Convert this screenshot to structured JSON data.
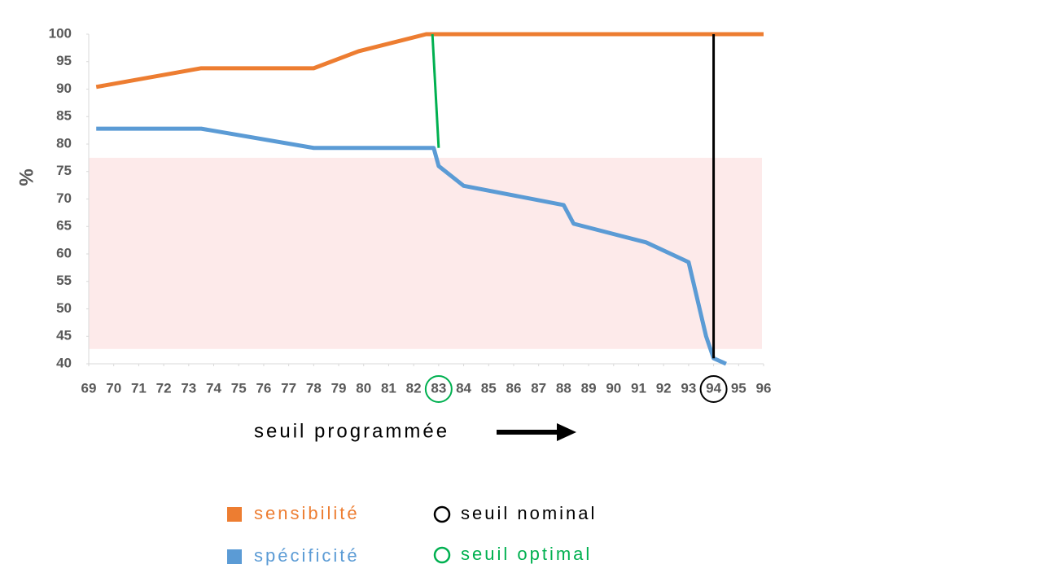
{
  "chart_data": {
    "type": "line",
    "ylabel": "%",
    "xlabel": "seuil programmée",
    "xlim": [
      69,
      96
    ],
    "ylim": [
      40,
      100
    ],
    "xticks": [
      69,
      70,
      71,
      72,
      73,
      74,
      75,
      76,
      77,
      78,
      79,
      80,
      81,
      82,
      83,
      84,
      85,
      86,
      87,
      88,
      89,
      90,
      91,
      92,
      93,
      94,
      95,
      96
    ],
    "yticks": [
      40,
      45,
      50,
      55,
      60,
      65,
      70,
      75,
      80,
      85,
      90,
      95,
      100
    ],
    "series": [
      {
        "name": "sensibilité",
        "color": "#ed7d31",
        "x": [
          69.3,
          73.5,
          78,
          79.8,
          82.5,
          96
        ],
        "values": [
          90.4,
          93.8,
          93.8,
          96.9,
          100,
          100
        ]
      },
      {
        "name": "spécificité",
        "color": "#5b9bd5",
        "x": [
          69.3,
          73.5,
          78,
          82.8,
          83,
          84,
          88,
          88.4,
          91.3,
          93,
          93.7,
          94,
          94.5
        ],
        "values": [
          82.8,
          82.8,
          79.3,
          79.3,
          76,
          72.4,
          68.9,
          65.5,
          62.1,
          58.5,
          45,
          41,
          40
        ]
      }
    ],
    "band": {
      "ylim": [
        42.7,
        77.5
      ],
      "color": "#fdeaea"
    },
    "vlines": [
      {
        "name": "seuil optimal",
        "color": "#00b050",
        "tick": 83,
        "x": [
          82.75,
          83
        ],
        "y": [
          100,
          79.3
        ]
      },
      {
        "name": "seuil nominal",
        "color": "#000000",
        "tick": 94,
        "x": [
          94,
          94
        ],
        "y": [
          100,
          41
        ]
      }
    ]
  }
}
